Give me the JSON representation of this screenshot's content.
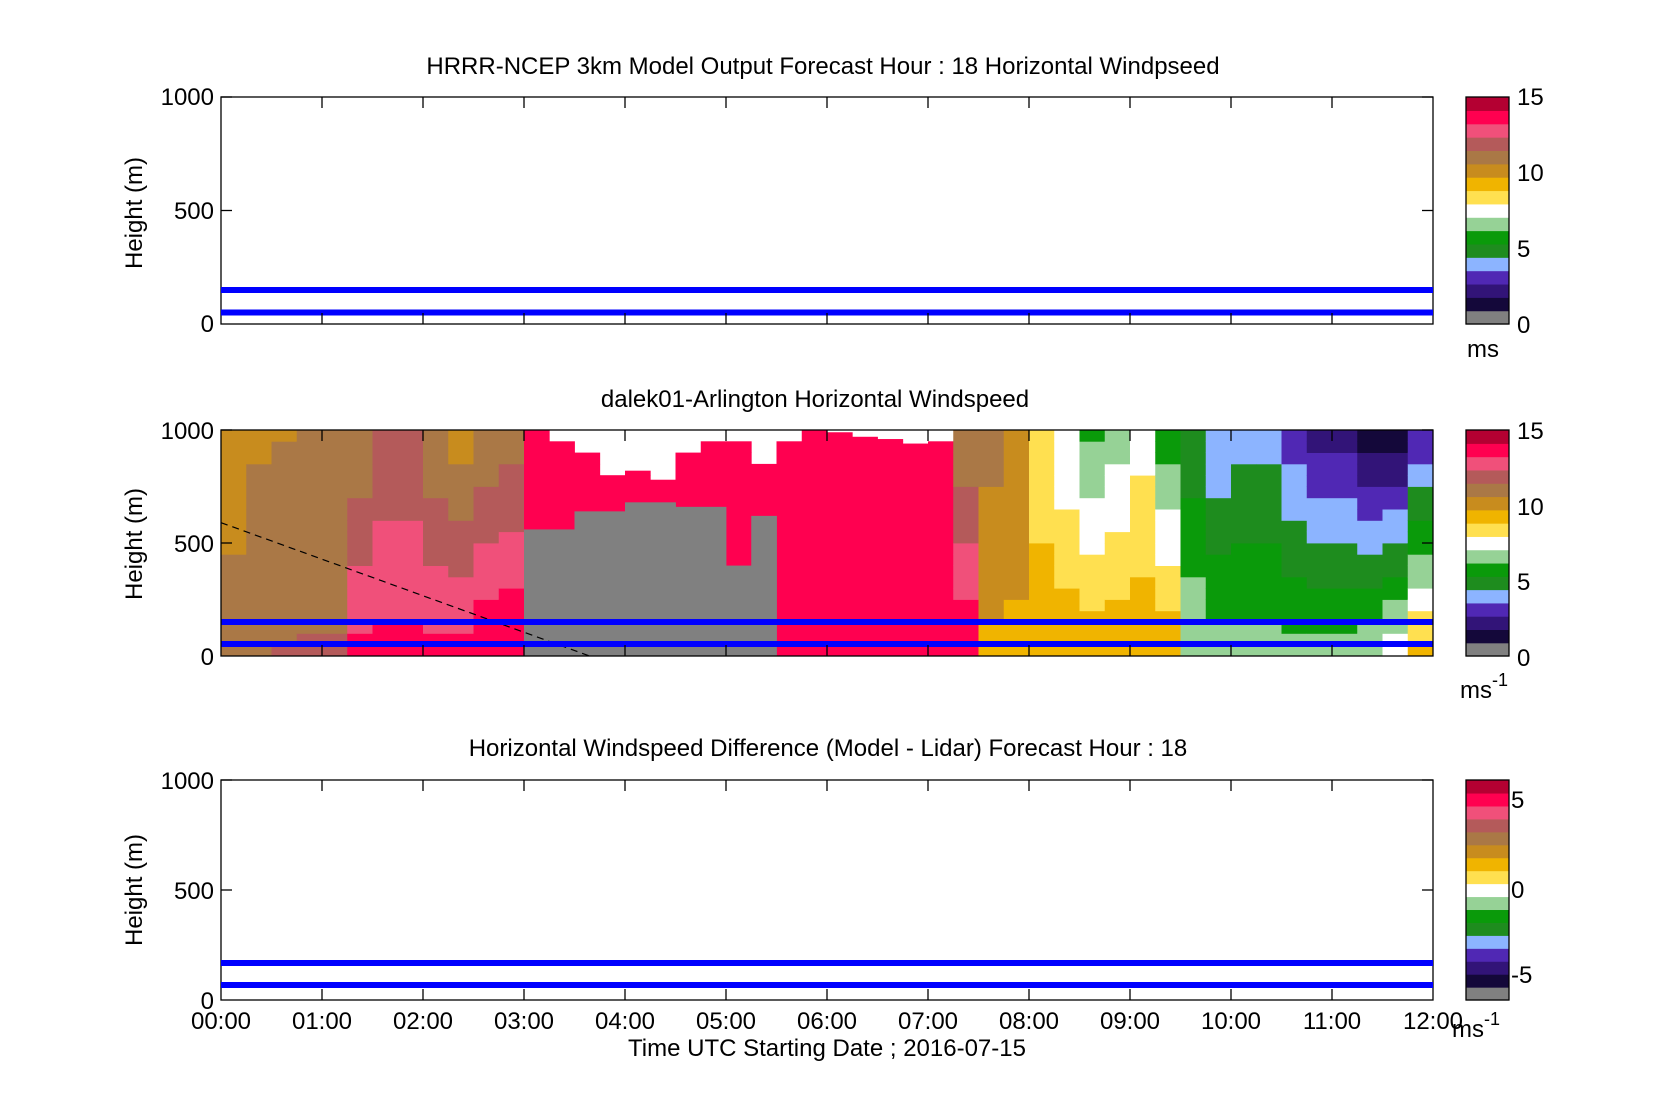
{
  "chart_data": [
    {
      "type": "heatmap",
      "title": "HRRR-NCEP 3km Model Output   Forecast Hour : 18 Horizontal Windpseed",
      "xlabel": "",
      "ylabel": "Height (m)",
      "ylim": [
        0,
        1000
      ],
      "yticks": [
        "0",
        "500",
        "1000"
      ],
      "xlim": [
        "00:00",
        "12:00"
      ],
      "grid": false,
      "reference_lines_m": [
        150,
        50
      ],
      "reference_line_color": "#0000ff",
      "colorbar": {
        "range": [
          0,
          15
        ],
        "ticks": [
          "0",
          "5",
          "10",
          "15"
        ],
        "unit": "ms",
        "unit_exponent": ""
      },
      "values": []
    },
    {
      "type": "heatmap",
      "title": "dalek01-Arlington  Horizontal Windspeed",
      "xlabel": "",
      "ylabel": "Height (m)",
      "ylim": [
        0,
        1000
      ],
      "yticks": [
        "0",
        "500",
        "1000"
      ],
      "xlim": [
        "00:00",
        "12:00"
      ],
      "grid": false,
      "reference_lines_m": [
        150,
        50
      ],
      "reference_line_color": "#0000ff",
      "colorbar": {
        "range": [
          0,
          15
        ],
        "ticks": [
          "0",
          "5",
          "10",
          "15"
        ],
        "unit": "ms",
        "unit_exponent": "-1"
      },
      "time_hours": [
        0,
        0.25,
        0.5,
        0.75,
        1.0,
        1.25,
        1.5,
        1.75,
        2.0,
        2.25,
        2.5,
        2.75,
        3.0,
        3.25,
        3.5,
        3.75,
        4.0,
        4.25,
        4.5,
        4.75,
        5.0,
        5.25,
        5.5,
        5.75,
        6.0,
        6.25,
        6.5,
        6.75,
        7.0,
        7.25,
        7.5,
        7.75,
        8.0,
        8.25,
        8.5,
        8.75,
        9.0,
        9.25,
        9.5,
        9.75,
        10.0,
        10.25,
        10.5,
        10.75,
        11.0,
        11.25,
        11.5,
        11.75
      ],
      "data_top_m": [
        1000,
        1000,
        1000,
        1000,
        1000,
        1000,
        1000,
        1000,
        1000,
        1000,
        1000,
        1000,
        1000,
        950,
        900,
        800,
        820,
        780,
        900,
        950,
        950,
        850,
        950,
        1000,
        990,
        970,
        960,
        940,
        950,
        1000,
        1000,
        1000,
        1000,
        1000,
        1000,
        1000,
        1000,
        1000,
        1000,
        1000,
        1000,
        1000,
        1000,
        1000,
        1000,
        1000,
        1000,
        1000
      ],
      "speed_ms_low": [
        11,
        11,
        11.5,
        11.5,
        11.5,
        13.5,
        13.5,
        13.5,
        13.5,
        13.5,
        14,
        14,
        14,
        14,
        14,
        14,
        14,
        14,
        14,
        14,
        14,
        14,
        14,
        14,
        14,
        14,
        14,
        14,
        14,
        14,
        9.5,
        9.5,
        9.5,
        9.5,
        9.5,
        9.5,
        9.5,
        9.5,
        7,
        6.5,
        6.5,
        6.5,
        6.5,
        6.5,
        6.5,
        7,
        7.5,
        9
      ],
      "speed_ms_high": [
        10,
        10.5,
        10.5,
        11,
        11,
        10.5,
        11.5,
        11.5,
        10.5,
        10,
        10.5,
        11,
        14,
        13.5,
        13.5,
        13.5,
        13.5,
        13.5,
        14,
        14,
        14,
        14,
        14,
        14,
        14,
        14,
        14,
        14,
        14,
        10.5,
        11,
        10.5,
        8,
        7,
        6,
        6.5,
        7.5,
        5.5,
        4.5,
        3.5,
        4,
        4,
        3,
        2,
        2,
        1,
        1,
        2.5
      ],
      "missing_gray_m": [
        [
          3.0,
          3.5,
          0,
          560
        ],
        [
          3.5,
          4.0,
          0,
          640
        ],
        [
          4.0,
          4.5,
          0,
          680
        ],
        [
          4.5,
          5.0,
          0,
          660
        ],
        [
          5.0,
          5.25,
          0,
          400
        ],
        [
          5.25,
          5.5,
          0,
          620
        ]
      ],
      "dashed_line": {
        "from": {
          "hour": 0,
          "m": 590
        },
        "to": {
          "hour": 3.65,
          "m": 0
        }
      }
    },
    {
      "type": "heatmap",
      "title": "Horizontal Windspeed Difference (Model - Lidar) Forecast Hour : 18",
      "xlabel": "Time UTC  Starting Date ; 2016-07-15",
      "ylabel": "Height (m)",
      "ylim": [
        0,
        1000
      ],
      "yticks": [
        "0",
        "500",
        "1000"
      ],
      "xlim": [
        "00:00",
        "12:00"
      ],
      "xticks": [
        "00:00",
        "01:00",
        "02:00",
        "03:00",
        "04:00",
        "05:00",
        "06:00",
        "07:00",
        "08:00",
        "09:00",
        "10:00",
        "11:00",
        "12:00"
      ],
      "grid": false,
      "reference_lines_m": [
        150,
        50
      ],
      "reference_line_color": "#0000ff",
      "colorbar": {
        "range": [
          -6.5,
          6.5
        ],
        "ticks": [
          "5",
          "0",
          "-5"
        ],
        "tick_values": [
          5,
          0,
          -5
        ],
        "unit": "ms",
        "unit_exponent": "-1"
      },
      "values": []
    }
  ],
  "colormap": [
    "#808080",
    "#14083a",
    "#321478",
    "#5028b4",
    "#8cb4ff",
    "#1e8c1e",
    "#0a9a0a",
    "#96d296",
    "#ffffff",
    "#ffe050",
    "#f0b400",
    "#c88c1e",
    "#aa7846",
    "#b45a5a",
    "#f0507a",
    "#ff0050",
    "#b40032"
  ]
}
